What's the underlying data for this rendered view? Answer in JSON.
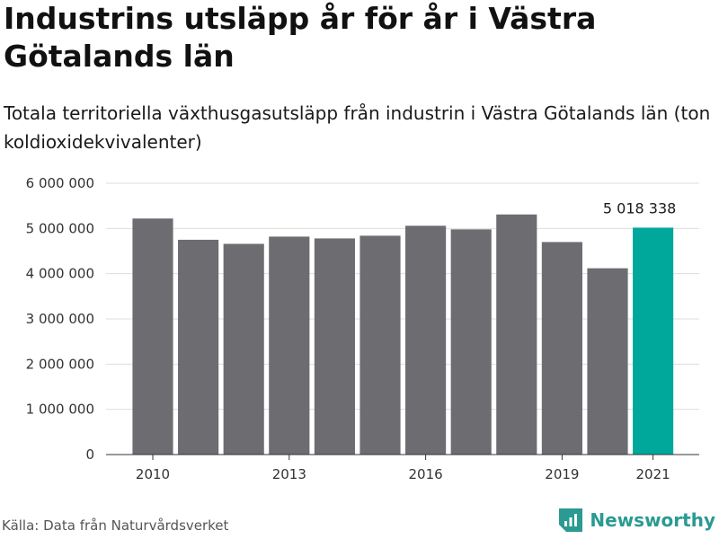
{
  "header": {
    "title": "Industrins utsläpp år för år i Västra Götalands län",
    "subtitle": "Totala territoriella växthusgasutsläpp från industrin i Västra Götalands län (ton koldioxidekvivalenter)"
  },
  "footer": {
    "source": "Källa: Data från Naturvårdsverket",
    "brand": "Newsworthy",
    "brand_icon": "newsworthy-logo-icon"
  },
  "colors": {
    "bar": "#6d6c71",
    "highlight": "#00a79b",
    "grid": "#dddddd",
    "brand": "#2a9a92"
  },
  "chart_data": {
    "type": "bar",
    "categories": [
      "2010",
      "2011",
      "2012",
      "2013",
      "2014",
      "2015",
      "2016",
      "2017",
      "2018",
      "2019",
      "2020",
      "2021"
    ],
    "values": [
      5220000,
      4750000,
      4660000,
      4820000,
      4780000,
      4840000,
      5060000,
      4980000,
      5310000,
      4700000,
      4120000,
      5018338
    ],
    "x_tick_labels": [
      "2010",
      "2013",
      "2016",
      "2019",
      "2021"
    ],
    "y_ticks": [
      0,
      1000000,
      2000000,
      3000000,
      4000000,
      5000000,
      6000000
    ],
    "y_tick_labels": [
      "0",
      "1 000 000",
      "2 000 000",
      "3 000 000",
      "4 000 000",
      "5 000 000",
      "6 000 000"
    ],
    "ylim": [
      0,
      6000000
    ],
    "highlight_index": 11,
    "data_labels": [
      {
        "index": 11,
        "text": "5 018 338"
      }
    ],
    "xlabel": "",
    "ylabel": "",
    "grid": "horizontal",
    "legend": "none"
  }
}
